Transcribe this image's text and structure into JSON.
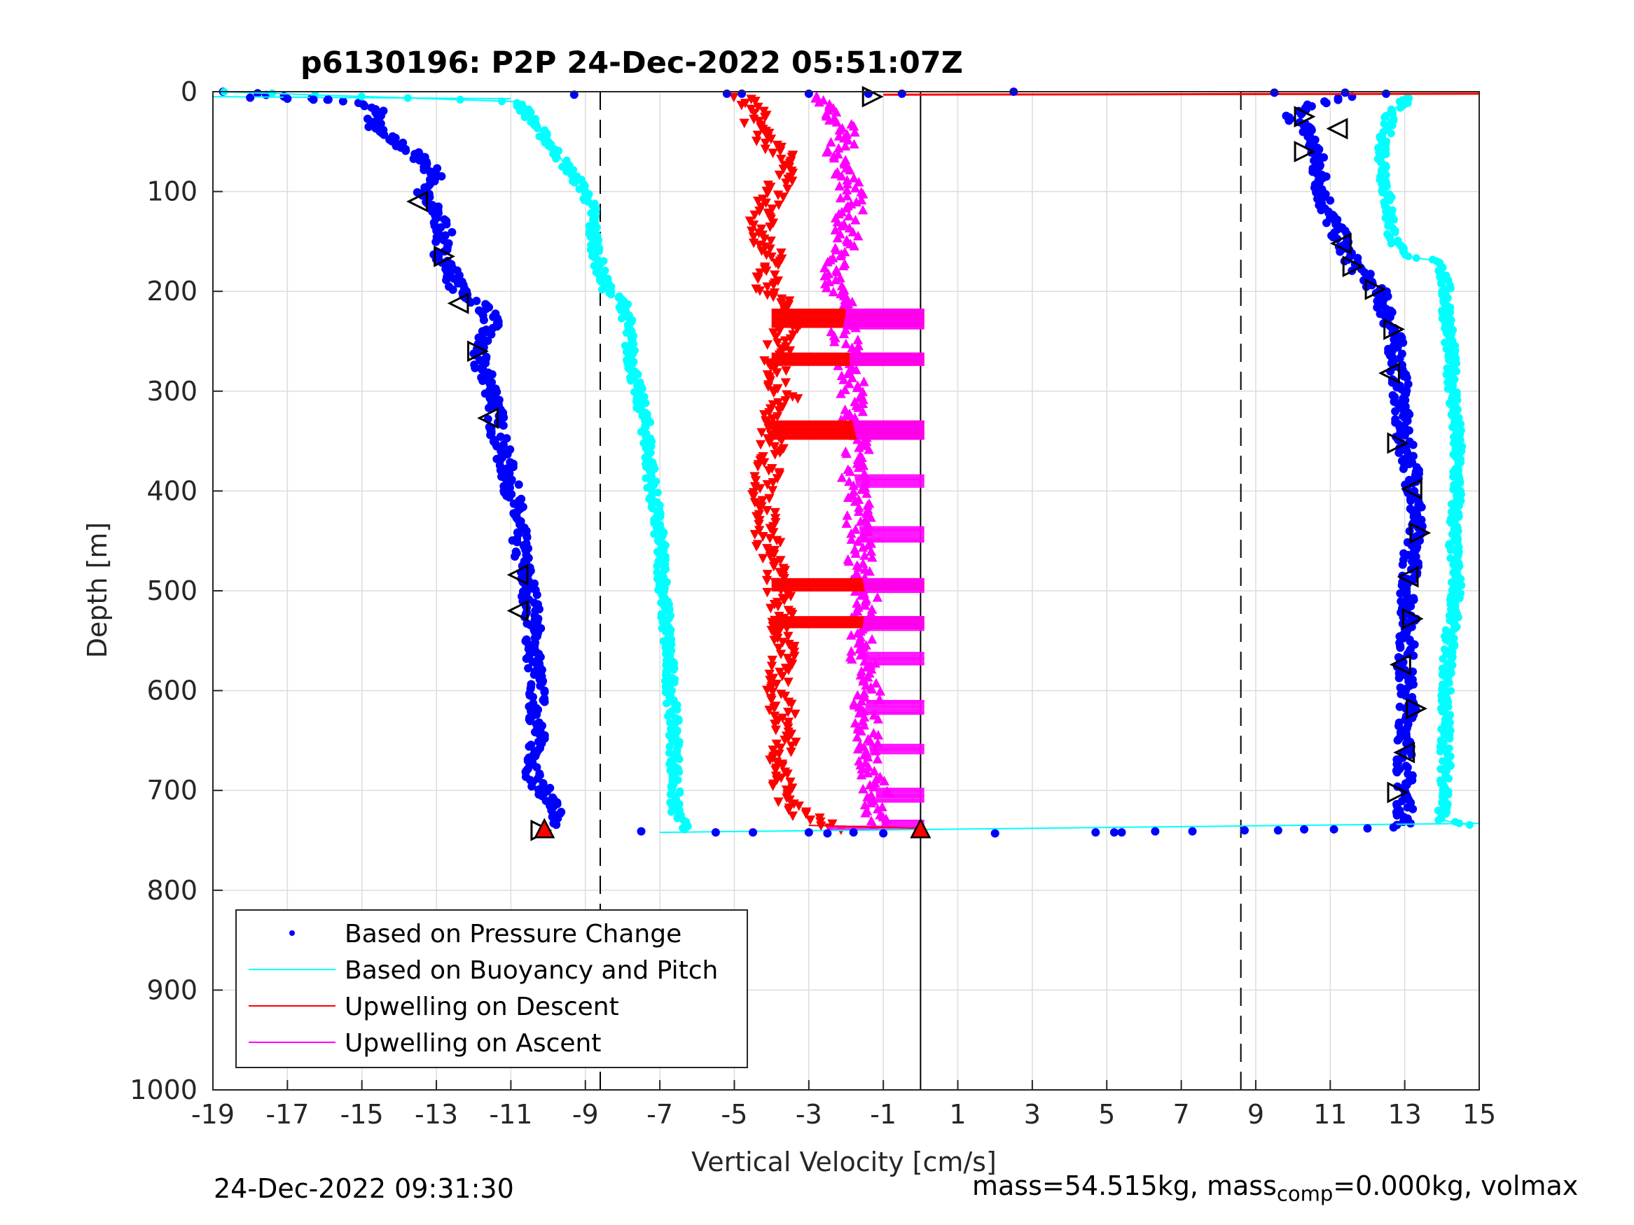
{
  "chart_data": {
    "type": "scatter",
    "title": "p6130196: P2P 24-Dec-2022 05:51:07Z",
    "xlabel": "Vertical Velocity [cm/s]",
    "ylabel": "Depth [m]",
    "xlim": [
      -19,
      15
    ],
    "ylim": [
      0,
      1000
    ],
    "y_reversed": true,
    "grid": true,
    "xticks": [
      -19,
      -17,
      -15,
      -13,
      -11,
      -9,
      -7,
      -5,
      -3,
      -1,
      1,
      3,
      5,
      7,
      9,
      11,
      13,
      15
    ],
    "yticks": [
      0,
      100,
      200,
      300,
      400,
      500,
      600,
      700,
      800,
      900,
      1000
    ],
    "vlines": {
      "dashed": [
        -8.6,
        8.6
      ],
      "solid": [
        0
      ]
    },
    "legend": {
      "position": "bottom-left",
      "entries": [
        {
          "label": "Based on Pressure Change",
          "color": "#0000ff",
          "style": "dot"
        },
        {
          "label": "Based on Buoyancy and Pitch",
          "color": "#00ffff",
          "style": "line"
        },
        {
          "label": "Upwelling on Descent",
          "color": "#ff0000",
          "style": "line"
        },
        {
          "label": "Upwelling on Ascent",
          "color": "#ff00ff",
          "style": "line"
        }
      ]
    },
    "series": [
      {
        "name": "Based on Pressure Change (descent)",
        "color": "#0000ff",
        "depth": [
          0,
          10,
          20,
          30,
          40,
          50,
          60,
          70,
          80,
          90,
          100,
          110,
          120,
          140,
          160,
          180,
          200,
          215,
          230,
          250,
          270,
          290,
          310,
          330,
          350,
          380,
          410,
          440,
          470,
          500,
          530,
          560,
          600,
          650,
          690,
          700,
          720,
          735
        ],
        "velocity": [
          -18.5,
          -15.3,
          -14.5,
          -14.7,
          -14.6,
          -14.1,
          -13.7,
          -13.3,
          -13.1,
          -13.0,
          -13.4,
          -13.3,
          -13.0,
          -12.8,
          -12.9,
          -12.6,
          -12.4,
          -11.7,
          -11.5,
          -11.8,
          -11.9,
          -11.6,
          -11.4,
          -11.4,
          -11.3,
          -11.1,
          -10.9,
          -10.8,
          -10.7,
          -10.5,
          -10.4,
          -10.4,
          -10.3,
          -10.3,
          -10.4,
          -10.1,
          -9.8,
          -10.0
        ]
      },
      {
        "name": "Based on Pressure Change (ascent)",
        "color": "#0000ff",
        "depth": [
          735,
          700,
          660,
          620,
          580,
          540,
          500,
          460,
          420,
          380,
          340,
          300,
          270,
          240,
          220,
          200,
          180,
          160,
          140,
          120,
          100,
          80,
          60,
          40,
          25,
          15,
          5
        ],
        "velocity": [
          13.0,
          13.0,
          13.0,
          13.1,
          13.0,
          13.1,
          13.1,
          13.2,
          13.3,
          13.2,
          12.9,
          12.9,
          12.8,
          12.7,
          12.5,
          12.3,
          11.8,
          11.4,
          11.2,
          10.9,
          10.8,
          10.7,
          10.6,
          10.4,
          10.0,
          10.3,
          11.5
        ]
      },
      {
        "name": "Based on Buoyancy and Pitch (descent)",
        "color": "#00ffff",
        "depth": [
          0,
          10,
          20,
          40,
          60,
          80,
          100,
          120,
          140,
          160,
          180,
          200,
          210,
          220,
          260,
          300,
          330,
          360,
          400,
          450,
          500,
          550,
          600,
          650,
          700,
          720,
          740
        ],
        "velocity": [
          -18.8,
          -10.8,
          -10.6,
          -10.2,
          -9.8,
          -9.4,
          -9.0,
          -8.8,
          -8.8,
          -8.7,
          -8.6,
          -8.4,
          -8.0,
          -7.9,
          -7.8,
          -7.6,
          -7.4,
          -7.3,
          -7.2,
          -7.0,
          -6.9,
          -6.8,
          -6.7,
          -6.6,
          -6.6,
          -6.6,
          -6.3
        ]
      },
      {
        "name": "Based on Buoyancy and Pitch (ascent)",
        "color": "#00ffff",
        "depth": [
          735,
          730,
          700,
          650,
          600,
          550,
          500,
          450,
          400,
          350,
          300,
          250,
          200,
          170,
          165,
          150,
          100,
          60,
          20,
          5
        ],
        "velocity": [
          14.8,
          14.0,
          14.1,
          14.1,
          14.1,
          14.2,
          14.4,
          14.3,
          14.4,
          14.4,
          14.3,
          14.2,
          14.1,
          14.0,
          13.0,
          12.7,
          12.5,
          12.4,
          12.6,
          13.2
        ]
      },
      {
        "name": "Upwelling on Descent",
        "color": "#ff0000",
        "depth": [
          5,
          20,
          40,
          60,
          80,
          100,
          120,
          140,
          160,
          180,
          200,
          215,
          230,
          250,
          270,
          290,
          310,
          330,
          360,
          400,
          450,
          500,
          550,
          600,
          650,
          690,
          710,
          725,
          740
        ],
        "velocity": [
          -4.8,
          -4.5,
          -4.3,
          -3.8,
          -3.6,
          -3.9,
          -4.2,
          -4.3,
          -4.0,
          -4.1,
          -4.1,
          -3.5,
          -3.5,
          -3.8,
          -3.9,
          -3.8,
          -3.6,
          -4.0,
          -4.0,
          -4.2,
          -4.1,
          -3.8,
          -3.7,
          -3.8,
          -3.6,
          -3.8,
          -3.5,
          -3.2,
          -2.0
        ]
      },
      {
        "name": "Upwelling on Ascent",
        "color": "#ff00ff",
        "depth": [
          735,
          720,
          700,
          680,
          650,
          620,
          600,
          580,
          550,
          520,
          500,
          480,
          450,
          420,
          400,
          380,
          350,
          320,
          300,
          280,
          260,
          240,
          220,
          200,
          180,
          160,
          140,
          120,
          100,
          80,
          60,
          40,
          20,
          5
        ],
        "velocity": [
          -1.0,
          -1.2,
          -1.2,
          -1.3,
          -1.4,
          -1.5,
          -1.4,
          -1.5,
          -1.6,
          -1.5,
          -1.5,
          -1.6,
          -1.6,
          -1.7,
          -1.7,
          -1.8,
          -1.7,
          -1.9,
          -1.8,
          -1.9,
          -1.9,
          -2.1,
          -2.0,
          -2.3,
          -2.4,
          -2.1,
          -2.0,
          -1.9,
          -1.8,
          -2.0,
          -2.2,
          -2.0,
          -2.5,
          -2.5
        ]
      }
    ],
    "triangles": [
      {
        "depth": 5,
        "velocity": -1.3,
        "dir": "right"
      },
      {
        "depth": 110,
        "velocity": -13.5,
        "dir": "left"
      },
      {
        "depth": 165,
        "velocity": -12.8,
        "dir": "right"
      },
      {
        "depth": 212,
        "velocity": -12.4,
        "dir": "left"
      },
      {
        "depth": 260,
        "velocity": -11.9,
        "dir": "right"
      },
      {
        "depth": 327,
        "velocity": -11.6,
        "dir": "left"
      },
      {
        "depth": 484,
        "velocity": -10.8,
        "dir": "left"
      },
      {
        "depth": 520,
        "velocity": -10.8,
        "dir": "left"
      },
      {
        "depth": 740,
        "velocity": -10.2,
        "dir": "right"
      },
      {
        "depth": 25,
        "velocity": 10.3,
        "dir": "right"
      },
      {
        "depth": 37,
        "velocity": 11.2,
        "dir": "left"
      },
      {
        "depth": 60,
        "velocity": 10.3,
        "dir": "right"
      },
      {
        "depth": 152,
        "velocity": 11.3,
        "dir": "left"
      },
      {
        "depth": 175,
        "velocity": 11.6,
        "dir": "right"
      },
      {
        "depth": 198,
        "velocity": 12.2,
        "dir": "right"
      },
      {
        "depth": 238,
        "velocity": 12.7,
        "dir": "right"
      },
      {
        "depth": 282,
        "velocity": 12.6,
        "dir": "left"
      },
      {
        "depth": 352,
        "velocity": 12.8,
        "dir": "right"
      },
      {
        "depth": 398,
        "velocity": 13.2,
        "dir": "left"
      },
      {
        "depth": 442,
        "velocity": 13.4,
        "dir": "right"
      },
      {
        "depth": 486,
        "velocity": 13.1,
        "dir": "left"
      },
      {
        "depth": 528,
        "velocity": 13.2,
        "dir": "right"
      },
      {
        "depth": 574,
        "velocity": 12.9,
        "dir": "left"
      },
      {
        "depth": 618,
        "velocity": 13.3,
        "dir": "right"
      },
      {
        "depth": 662,
        "velocity": 13.0,
        "dir": "left"
      },
      {
        "depth": 702,
        "velocity": 12.8,
        "dir": "right"
      }
    ],
    "red_markers": [
      {
        "depth": 740,
        "velocity": -10.1
      },
      {
        "depth": 740,
        "velocity": 0
      }
    ]
  },
  "footer": {
    "timestamp": "24-Dec-2022 09:31:30",
    "mass_prefix": "mass=54.515kg, mass",
    "mass_sub": "comp",
    "mass_suffix": "=0.000kg, volmax"
  }
}
